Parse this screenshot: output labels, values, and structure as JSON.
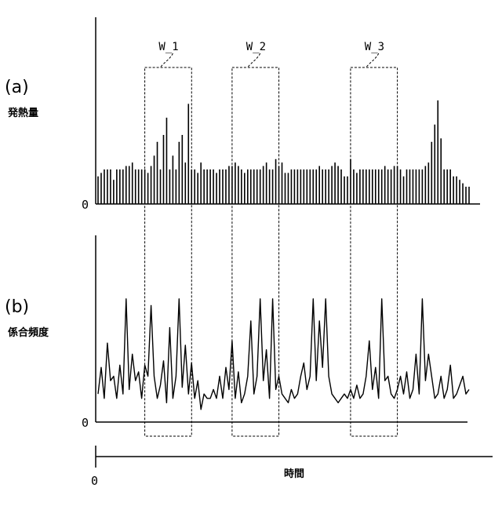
{
  "chart_data": [
    {
      "type": "bar",
      "panel_label": "(a)",
      "ylabel": "発熱量",
      "y_origin_label": "0",
      "x": [
        1,
        2,
        3,
        4,
        5,
        6,
        7,
        8,
        9,
        10,
        11,
        12,
        13,
        14,
        15,
        16,
        17,
        18,
        19,
        20,
        21,
        22,
        23,
        24,
        25,
        26,
        27,
        28,
        29,
        30,
        31,
        32,
        33,
        34,
        35,
        36,
        37,
        38,
        39,
        40,
        41,
        42,
        43,
        44,
        45,
        46,
        47,
        48,
        49,
        50,
        51,
        52,
        53,
        54,
        55,
        56,
        57,
        58,
        59,
        60,
        61,
        62,
        63,
        64,
        65,
        66,
        67,
        68,
        69,
        70,
        71,
        72,
        73,
        74,
        75,
        76,
        77,
        78,
        79,
        80,
        81,
        82,
        83,
        84,
        85,
        86,
        87,
        88,
        89,
        90,
        91,
        92,
        93,
        94,
        95,
        96,
        97,
        98,
        99,
        100,
        101,
        102,
        103,
        104,
        105,
        106,
        107,
        108,
        109,
        110,
        111,
        112,
        113,
        114,
        115,
        116,
        117,
        118,
        119,
        120
      ],
      "values": [
        0.16,
        0.18,
        0.2,
        0.2,
        0.2,
        0.14,
        0.2,
        0.2,
        0.2,
        0.22,
        0.22,
        0.24,
        0.2,
        0.2,
        0.2,
        0.2,
        0.18,
        0.22,
        0.28,
        0.36,
        0.2,
        0.4,
        0.5,
        0.2,
        0.28,
        0.2,
        0.36,
        0.4,
        0.24,
        0.58,
        0.2,
        0.2,
        0.18,
        0.24,
        0.2,
        0.2,
        0.2,
        0.2,
        0.18,
        0.2,
        0.2,
        0.2,
        0.22,
        0.22,
        0.24,
        0.22,
        0.2,
        0.18,
        0.2,
        0.2,
        0.2,
        0.2,
        0.2,
        0.22,
        0.24,
        0.2,
        0.2,
        0.26,
        0.22,
        0.24,
        0.18,
        0.18,
        0.2,
        0.2,
        0.2,
        0.2,
        0.2,
        0.2,
        0.2,
        0.2,
        0.2,
        0.22,
        0.2,
        0.2,
        0.2,
        0.22,
        0.24,
        0.22,
        0.2,
        0.16,
        0.16,
        0.26,
        0.2,
        0.18,
        0.2,
        0.2,
        0.2,
        0.2,
        0.2,
        0.2,
        0.2,
        0.2,
        0.22,
        0.2,
        0.2,
        0.22,
        0.22,
        0.2,
        0.16,
        0.2,
        0.2,
        0.2,
        0.2,
        0.2,
        0.2,
        0.22,
        0.24,
        0.36,
        0.46,
        0.6,
        0.38,
        0.2,
        0.2,
        0.2,
        0.16,
        0.16,
        0.14,
        0.12,
        0.1,
        0.1
      ],
      "windows": [
        {
          "label": "W_1",
          "x_start": 17,
          "x_end": 30
        },
        {
          "label": "W_2",
          "x_start": 45,
          "x_end": 58
        },
        {
          "label": "W_3",
          "x_start": 83,
          "x_end": 96
        }
      ]
    },
    {
      "type": "line",
      "panel_label": "(b)",
      "ylabel": "係合頻度",
      "y_origin_label": "0",
      "x": [
        1,
        2,
        3,
        4,
        5,
        6,
        7,
        8,
        9,
        10,
        11,
        12,
        13,
        14,
        15,
        16,
        17,
        18,
        19,
        20,
        21,
        22,
        23,
        24,
        25,
        26,
        27,
        28,
        29,
        30,
        31,
        32,
        33,
        34,
        35,
        36,
        37,
        38,
        39,
        40,
        41,
        42,
        43,
        44,
        45,
        46,
        47,
        48,
        49,
        50,
        51,
        52,
        53,
        54,
        55,
        56,
        57,
        58,
        59,
        60,
        61,
        62,
        63,
        64,
        65,
        66,
        67,
        68,
        69,
        70,
        71,
        72,
        73,
        74,
        75,
        76,
        77,
        78,
        79,
        80,
        81,
        82,
        83,
        84,
        85,
        86,
        87,
        88,
        89,
        90,
        91,
        92,
        93,
        94,
        95,
        96,
        97,
        98,
        99,
        100,
        101,
        102,
        103,
        104,
        105,
        106,
        107,
        108,
        109,
        110,
        111,
        112,
        113,
        114,
        115,
        116,
        117,
        118,
        119,
        120
      ],
      "values": [
        0.12,
        0.24,
        0.1,
        0.35,
        0.18,
        0.2,
        0.1,
        0.25,
        0.12,
        0.55,
        0.14,
        0.3,
        0.18,
        0.22,
        0.1,
        0.25,
        0.2,
        0.52,
        0.2,
        0.1,
        0.16,
        0.27,
        0.08,
        0.42,
        0.1,
        0.2,
        0.55,
        0.15,
        0.34,
        0.12,
        0.26,
        0.1,
        0.18,
        0.05,
        0.12,
        0.1,
        0.1,
        0.14,
        0.1,
        0.2,
        0.1,
        0.24,
        0.14,
        0.36,
        0.1,
        0.22,
        0.08,
        0.12,
        0.2,
        0.45,
        0.12,
        0.2,
        0.55,
        0.18,
        0.32,
        0.1,
        0.55,
        0.14,
        0.2,
        0.12,
        0.1,
        0.08,
        0.14,
        0.1,
        0.12,
        0.2,
        0.26,
        0.14,
        0.2,
        0.55,
        0.18,
        0.45,
        0.24,
        0.55,
        0.2,
        0.12,
        0.1,
        0.08,
        0.1,
        0.12,
        0.1,
        0.14,
        0.1,
        0.16,
        0.1,
        0.12,
        0.2,
        0.36,
        0.14,
        0.24,
        0.1,
        0.55,
        0.18,
        0.2,
        0.12,
        0.1,
        0.14,
        0.2,
        0.12,
        0.22,
        0.1,
        0.14,
        0.3,
        0.12,
        0.55,
        0.18,
        0.3,
        0.2,
        0.1,
        0.12,
        0.2,
        0.1,
        0.14,
        0.25,
        0.1,
        0.12,
        0.16,
        0.2,
        0.12,
        0.14
      ]
    }
  ],
  "x_axis": {
    "origin_label": "0",
    "label": "時間"
  }
}
